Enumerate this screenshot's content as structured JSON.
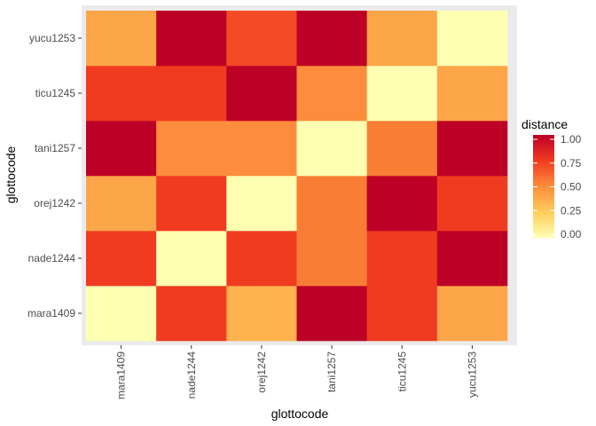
{
  "chart_data": {
    "type": "heatmap",
    "xlabel": "glottocode",
    "ylabel": "glottocode",
    "x_categories": [
      "mara1409",
      "nade1244",
      "orej1242",
      "tani1257",
      "ticu1245",
      "yucu1253"
    ],
    "y_categories": [
      "mara1409",
      "nade1244",
      "orej1242",
      "tani1257",
      "ticu1245",
      "yucu1253"
    ],
    "values": [
      [
        0.0,
        0.75,
        0.35,
        1.0,
        0.75,
        0.4
      ],
      [
        0.75,
        0.0,
        0.75,
        0.55,
        0.75,
        1.0
      ],
      [
        0.4,
        0.75,
        0.0,
        0.55,
        1.0,
        0.75
      ],
      [
        1.0,
        0.5,
        0.5,
        0.0,
        0.55,
        1.0
      ],
      [
        0.75,
        0.75,
        1.0,
        0.5,
        0.0,
        0.4
      ],
      [
        0.4,
        1.0,
        0.7,
        1.0,
        0.4,
        0.0
      ]
    ],
    "legend": {
      "title": "distance",
      "ticks": [
        "0.00",
        "0.25",
        "0.50",
        "0.75",
        "1.00"
      ],
      "range": [
        0,
        1
      ],
      "placement": "right"
    },
    "color_scale": [
      "#ffffb2",
      "#fecc5c",
      "#fd8d3c",
      "#f03b20",
      "#bd0026"
    ],
    "panel_background": "#ebebeb"
  }
}
